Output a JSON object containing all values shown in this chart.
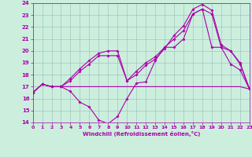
{
  "xlabel": "Windchill (Refroidissement éolien,°C)",
  "background_color": "#cceedd",
  "line_color": "#aa00aa",
  "grid_color": "#99bbbb",
  "xlim": [
    0,
    23
  ],
  "ylim": [
    14,
    24
  ],
  "xticks": [
    0,
    1,
    2,
    3,
    4,
    5,
    6,
    7,
    8,
    9,
    10,
    11,
    12,
    13,
    14,
    15,
    16,
    17,
    18,
    19,
    20,
    21,
    22,
    23
  ],
  "yticks": [
    14,
    15,
    16,
    17,
    18,
    19,
    20,
    21,
    22,
    23,
    24
  ],
  "curve1_x": [
    0,
    1,
    2,
    3,
    4,
    5,
    6,
    7,
    8,
    9,
    10,
    11,
    12,
    13,
    14,
    15,
    16,
    17,
    18,
    19,
    20,
    21,
    22,
    23
  ],
  "curve1_y": [
    16.5,
    17.2,
    17.0,
    17.0,
    16.6,
    15.7,
    15.3,
    14.2,
    13.9,
    14.5,
    16.0,
    17.3,
    17.4,
    19.2,
    20.3,
    20.3,
    21.0,
    23.1,
    23.5,
    20.3,
    20.3,
    18.9,
    18.4,
    16.8
  ],
  "curve2_x": [
    0,
    1,
    2,
    3,
    4,
    5,
    6,
    7,
    8,
    9,
    10,
    11,
    12,
    13,
    14,
    15,
    16,
    17,
    18,
    19,
    20,
    21,
    22,
    23
  ],
  "curve2_y": [
    16.5,
    17.2,
    17.0,
    17.0,
    17.0,
    17.0,
    17.0,
    17.0,
    17.0,
    17.0,
    17.0,
    17.0,
    17.0,
    17.0,
    17.0,
    17.0,
    17.0,
    17.0,
    17.0,
    17.0,
    17.0,
    17.0,
    17.0,
    16.8
  ],
  "curve3_x": [
    0,
    1,
    2,
    3,
    4,
    5,
    6,
    7,
    8,
    9,
    10,
    11,
    12,
    13,
    14,
    15,
    16,
    17,
    18,
    19,
    20,
    21,
    22,
    23
  ],
  "curve3_y": [
    16.5,
    17.2,
    17.0,
    17.0,
    17.5,
    18.3,
    18.9,
    19.6,
    19.6,
    19.6,
    17.5,
    18.3,
    19.0,
    19.5,
    20.3,
    21.0,
    21.7,
    23.1,
    23.5,
    23.1,
    20.3,
    20.0,
    18.9,
    16.8
  ],
  "curve4_x": [
    0,
    1,
    2,
    3,
    4,
    5,
    6,
    7,
    8,
    9,
    10,
    11,
    12,
    13,
    14,
    15,
    16,
    17,
    18,
    19,
    20,
    21,
    22,
    23
  ],
  "curve4_y": [
    16.5,
    17.2,
    17.0,
    17.0,
    17.7,
    18.5,
    19.2,
    19.8,
    20.0,
    20.0,
    17.5,
    18.0,
    18.8,
    19.3,
    20.2,
    21.3,
    22.1,
    23.5,
    23.9,
    23.4,
    20.5,
    20.0,
    19.0,
    16.8
  ]
}
